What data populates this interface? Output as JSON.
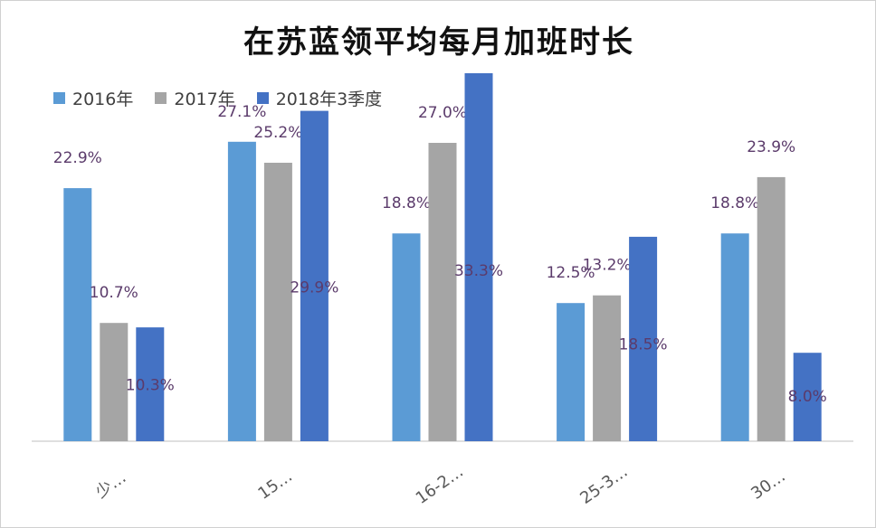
{
  "colors": {
    "series_2016": "#5b9bd5",
    "series_2017": "#a5a5a5",
    "series_2018q3": "#4472c4",
    "data_label": "#5b3b6b",
    "axis": "#bfbfbf",
    "tick_label": "#595959"
  },
  "chart_data": {
    "type": "bar",
    "title": "在苏蓝领平均每月加班时长",
    "xlabel": "",
    "ylabel": "",
    "ylim": [
      0,
      35
    ],
    "grid": false,
    "legend_position": "top-left",
    "categories": [
      "少…",
      "15…",
      "16-2…",
      "25-3…",
      "30…"
    ],
    "series": [
      {
        "name": "2016年",
        "values": [
          22.9,
          27.1,
          18.8,
          12.5,
          18.8
        ],
        "labels": [
          "22.9%",
          "27.1%",
          "18.8%",
          "12.5%",
          "18.8%"
        ]
      },
      {
        "name": "2017年",
        "values": [
          10.7,
          25.2,
          27.0,
          13.2,
          23.9
        ],
        "labels": [
          "10.7%",
          "25.2%",
          "27.0%",
          "13.2%",
          "23.9%"
        ]
      },
      {
        "name": "2018年3季度",
        "values": [
          10.3,
          29.9,
          33.3,
          18.5,
          8.0
        ],
        "labels": [
          "10.3%",
          "29.9%",
          "33.3%",
          "18.5%",
          "8.0%"
        ]
      }
    ]
  }
}
